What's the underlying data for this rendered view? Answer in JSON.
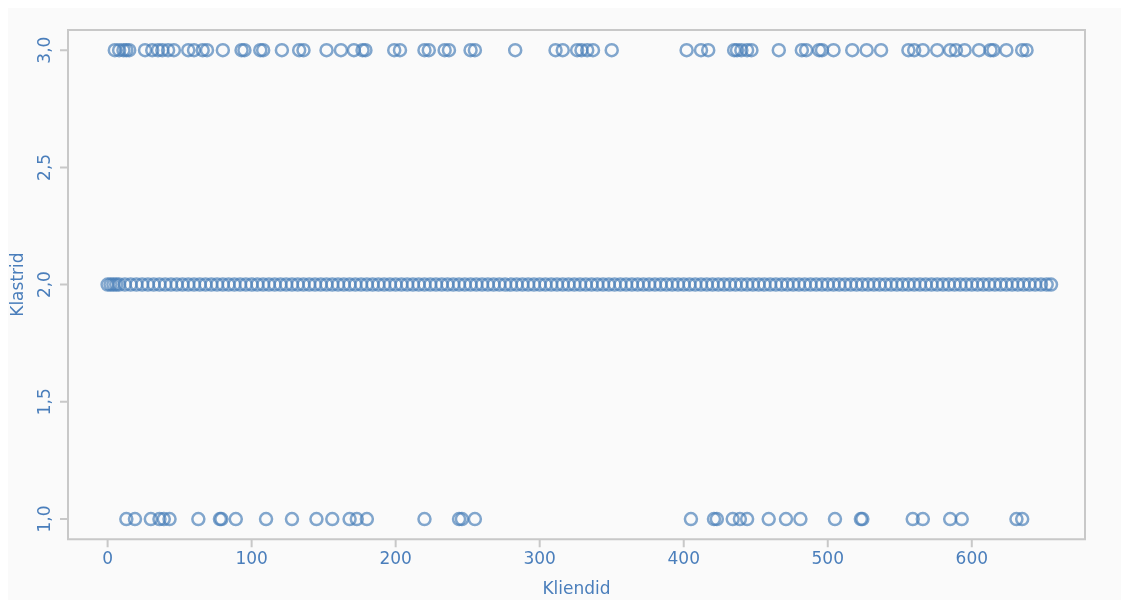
{
  "chart_data": {
    "type": "scatter",
    "xlabel": "Kliendid",
    "ylabel": "Klastrid",
    "xlim": [
      -27.5,
      678.6
    ],
    "ylim": [
      0.914,
      3.086
    ],
    "xticks": [
      0,
      100,
      200,
      300,
      400,
      500,
      600
    ],
    "yticks": [
      {
        "value": 1,
        "label": "1,0"
      },
      {
        "value": 1.5,
        "label": "1,5"
      },
      {
        "value": 2,
        "label": "2,0"
      },
      {
        "value": 2.5,
        "label": "2,5"
      },
      {
        "value": 3,
        "label": "3,0"
      }
    ],
    "grid": false,
    "legend": false,
    "marker": "circle",
    "series": [
      {
        "color": "#4a7fb8",
        "x": [
          5,
          8,
          11,
          13,
          15,
          26,
          31,
          35,
          38,
          42,
          46,
          56,
          60,
          66,
          69,
          80,
          93,
          95,
          106,
          108,
          121,
          133,
          136,
          152,
          162,
          171,
          177,
          179,
          199,
          203,
          220,
          223,
          234,
          237,
          252,
          255,
          283,
          311,
          316,
          326,
          329,
          333,
          337,
          350,
          402,
          412,
          417,
          435,
          437,
          440,
          444,
          447,
          466,
          482,
          485,
          494,
          496,
          504,
          517,
          527,
          537,
          556,
          560,
          566,
          576,
          585,
          589,
          595,
          605,
          613,
          615,
          624,
          635,
          638
        ],
        "values": [
          3,
          3,
          3,
          3,
          3,
          3,
          3,
          3,
          3,
          3,
          3,
          3,
          3,
          3,
          3,
          3,
          3,
          3,
          3,
          3,
          3,
          3,
          3,
          3,
          3,
          3,
          3,
          3,
          3,
          3,
          3,
          3,
          3,
          3,
          3,
          3,
          3,
          3,
          3,
          3,
          3,
          3,
          3,
          3,
          3,
          3,
          3,
          3,
          3,
          3,
          3,
          3,
          3,
          3,
          3,
          3,
          3,
          3,
          3,
          3,
          3,
          3,
          3,
          3,
          3,
          3,
          3,
          3,
          3,
          3,
          3,
          3,
          3,
          3
        ]
      },
      {
        "color": "#4a7fb8",
        "x": [
          0,
          2,
          4,
          6,
          8,
          12,
          16,
          20,
          24,
          28,
          32,
          36,
          40,
          44,
          48,
          52,
          56,
          60,
          64,
          68,
          72,
          76,
          80,
          84,
          88,
          92,
          96,
          100,
          104,
          108,
          112,
          116,
          120,
          124,
          128,
          132,
          136,
          140,
          144,
          148,
          152,
          156,
          160,
          164,
          168,
          172,
          176,
          180,
          184,
          188,
          192,
          196,
          200,
          204,
          208,
          212,
          216,
          220,
          224,
          228,
          232,
          236,
          240,
          244,
          248,
          252,
          256,
          260,
          264,
          268,
          272,
          276,
          280,
          284,
          288,
          292,
          296,
          300,
          304,
          308,
          312,
          316,
          320,
          324,
          328,
          332,
          336,
          340,
          344,
          348,
          352,
          356,
          360,
          364,
          368,
          372,
          376,
          380,
          384,
          388,
          392,
          396,
          400,
          404,
          408,
          412,
          416,
          420,
          424,
          428,
          432,
          436,
          440,
          444,
          448,
          452,
          456,
          460,
          464,
          468,
          472,
          476,
          480,
          484,
          488,
          492,
          496,
          500,
          504,
          508,
          512,
          516,
          520,
          524,
          528,
          532,
          536,
          540,
          544,
          548,
          552,
          556,
          560,
          564,
          568,
          572,
          576,
          580,
          584,
          588,
          592,
          596,
          600,
          604,
          608,
          612,
          616,
          620,
          624,
          628,
          632,
          636,
          640,
          644,
          648,
          652,
          655
        ],
        "values": [
          2,
          2,
          2,
          2,
          2,
          2,
          2,
          2,
          2,
          2,
          2,
          2,
          2,
          2,
          2,
          2,
          2,
          2,
          2,
          2,
          2,
          2,
          2,
          2,
          2,
          2,
          2,
          2,
          2,
          2,
          2,
          2,
          2,
          2,
          2,
          2,
          2,
          2,
          2,
          2,
          2,
          2,
          2,
          2,
          2,
          2,
          2,
          2,
          2,
          2,
          2,
          2,
          2,
          2,
          2,
          2,
          2,
          2,
          2,
          2,
          2,
          2,
          2,
          2,
          2,
          2,
          2,
          2,
          2,
          2,
          2,
          2,
          2,
          2,
          2,
          2,
          2,
          2,
          2,
          2,
          2,
          2,
          2,
          2,
          2,
          2,
          2,
          2,
          2,
          2,
          2,
          2,
          2,
          2,
          2,
          2,
          2,
          2,
          2,
          2,
          2,
          2,
          2,
          2,
          2,
          2,
          2,
          2,
          2,
          2,
          2,
          2,
          2,
          2,
          2,
          2,
          2,
          2,
          2,
          2,
          2,
          2,
          2,
          2,
          2,
          2,
          2,
          2,
          2,
          2,
          2,
          2,
          2,
          2,
          2,
          2,
          2,
          2,
          2,
          2,
          2,
          2,
          2,
          2,
          2,
          2,
          2,
          2,
          2,
          2,
          2,
          2,
          2,
          2,
          2,
          2,
          2,
          2,
          2,
          2,
          2,
          2,
          2,
          2,
          2,
          2,
          2
        ]
      },
      {
        "color": "#4a7fb8",
        "x": [
          13,
          19,
          30,
          36,
          39,
          43,
          63,
          78,
          79,
          89,
          110,
          128,
          145,
          156,
          168,
          173,
          180,
          220,
          244,
          246,
          255,
          405,
          421,
          423,
          434,
          439,
          444,
          459,
          471,
          481,
          505,
          523,
          524,
          559,
          566,
          585,
          593,
          631,
          635
        ],
        "values": [
          1,
          1,
          1,
          1,
          1,
          1,
          1,
          1,
          1,
          1,
          1,
          1,
          1,
          1,
          1,
          1,
          1,
          1,
          1,
          1,
          1,
          1,
          1,
          1,
          1,
          1,
          1,
          1,
          1,
          1,
          1,
          1,
          1,
          1,
          1,
          1,
          1,
          1,
          1
        ]
      }
    ]
  }
}
